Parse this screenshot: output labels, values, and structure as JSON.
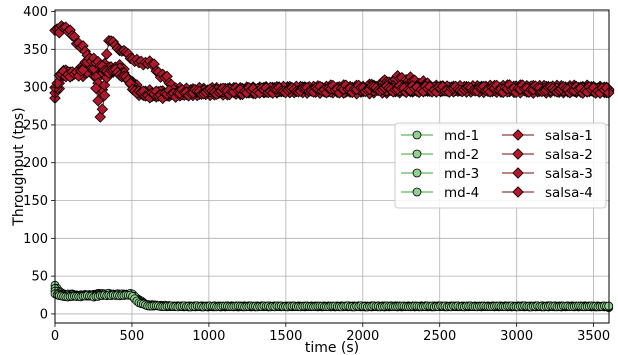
{
  "chart_data": {
    "type": "scatter",
    "title": "",
    "xlabel": "time (s)",
    "ylabel": "Throughput (tps)",
    "xlim": [
      0,
      3600
    ],
    "ylim": [
      -12,
      402
    ],
    "xticks": [
      0,
      500,
      1000,
      1500,
      2000,
      2500,
      3000,
      3500
    ],
    "yticks": [
      0,
      50,
      100,
      150,
      200,
      250,
      300,
      350,
      400
    ],
    "grid": true,
    "legend_position": "center-right",
    "legend_columns": 2,
    "colors": {
      "md_fill": "#8fd18f",
      "md_line": "#3aa53a",
      "salsa_fill": "#b2182b",
      "salsa_line": "#7a0a0a"
    },
    "series": [
      {
        "name": "md-1",
        "group": "md",
        "marker": "circle",
        "x": [
          0,
          25,
          50,
          100,
          150,
          200,
          250,
          300,
          350,
          400,
          450,
          500,
          550,
          600,
          700,
          800,
          1000,
          1500,
          2000,
          2500,
          3000,
          3500,
          3600
        ],
        "y": [
          38,
          30,
          27,
          26,
          25,
          25,
          26,
          27,
          26,
          25,
          26,
          25,
          18,
          12,
          11,
          10,
          10,
          10,
          10,
          10,
          10,
          10,
          9
        ]
      },
      {
        "name": "md-2",
        "group": "md",
        "marker": "circle",
        "x": [
          0,
          25,
          50,
          100,
          150,
          200,
          250,
          300,
          350,
          400,
          450,
          500,
          550,
          600,
          700,
          800,
          1000,
          1500,
          2000,
          2500,
          3000,
          3500,
          3600
        ],
        "y": [
          33,
          28,
          26,
          25,
          25,
          24,
          25,
          26,
          25,
          27,
          25,
          26,
          16,
          12,
          11,
          10,
          10,
          10,
          10,
          10,
          10,
          10,
          10
        ]
      },
      {
        "name": "md-3",
        "group": "md",
        "marker": "circle",
        "x": [
          0,
          25,
          50,
          100,
          150,
          200,
          250,
          300,
          350,
          400,
          450,
          500,
          550,
          600,
          700,
          800,
          1000,
          1500,
          2000,
          2500,
          3000,
          3500,
          3600
        ],
        "y": [
          30,
          26,
          24,
          24,
          24,
          25,
          24,
          25,
          27,
          26,
          26,
          27,
          15,
          12,
          10,
          10,
          10,
          10,
          10,
          10,
          10,
          10,
          10
        ]
      },
      {
        "name": "md-4",
        "group": "md",
        "marker": "circle",
        "x": [
          0,
          25,
          50,
          100,
          150,
          200,
          250,
          300,
          350,
          400,
          450,
          500,
          550,
          600,
          700,
          800,
          1000,
          1500,
          2000,
          2500,
          3000,
          3500,
          3600
        ],
        "y": [
          27,
          24,
          23,
          23,
          23,
          24,
          23,
          24,
          25,
          24,
          25,
          24,
          14,
          11,
          10,
          10,
          10,
          10,
          10,
          10,
          10,
          10,
          10
        ]
      },
      {
        "name": "salsa-1",
        "group": "salsa",
        "marker": "diamond",
        "x": [
          0,
          25,
          50,
          75,
          100,
          150,
          200,
          250,
          300,
          350,
          400,
          450,
          500,
          550,
          600,
          700,
          800,
          1000,
          1500,
          2000,
          2250,
          2500,
          3000,
          3500,
          3600
        ],
        "y": [
          375,
          370,
          385,
          378,
          370,
          360,
          345,
          318,
          312,
          360,
          355,
          345,
          340,
          330,
          335,
          315,
          295,
          293,
          298,
          298,
          312,
          298,
          298,
          298,
          296
        ]
      },
      {
        "name": "salsa-2",
        "group": "salsa",
        "marker": "diamond",
        "x": [
          0,
          25,
          50,
          75,
          100,
          150,
          200,
          250,
          300,
          350,
          400,
          450,
          500,
          550,
          600,
          700,
          800,
          1000,
          1500,
          2000,
          2500,
          3000,
          3500,
          3600
        ],
        "y": [
          285,
          300,
          320,
          315,
          318,
          320,
          330,
          320,
          295,
          315,
          330,
          320,
          305,
          295,
          292,
          291,
          292,
          294,
          296,
          297,
          297,
          298,
          297,
          295
        ]
      },
      {
        "name": "salsa-3",
        "group": "salsa",
        "marker": "diamond",
        "x": [
          0,
          25,
          50,
          75,
          100,
          150,
          200,
          250,
          300,
          350,
          400,
          450,
          500,
          550,
          600,
          700,
          800,
          1000,
          1500,
          2000,
          2500,
          3000,
          3500,
          3600
        ],
        "y": [
          295,
          305,
          318,
          322,
          320,
          315,
          320,
          325,
          255,
          330,
          322,
          320,
          300,
          292,
          290,
          292,
          293,
          295,
          297,
          296,
          298,
          297,
          297,
          296
        ]
      },
      {
        "name": "salsa-4",
        "group": "salsa",
        "marker": "diamond",
        "x": [
          0,
          25,
          50,
          75,
          100,
          150,
          200,
          250,
          300,
          350,
          400,
          450,
          500,
          550,
          600,
          700,
          800,
          1000,
          1500,
          2000,
          2500,
          3000,
          3500,
          3600
        ],
        "y": [
          300,
          310,
          320,
          318,
          315,
          318,
          330,
          340,
          325,
          322,
          320,
          315,
          300,
          292,
          290,
          290,
          292,
          294,
          296,
          298,
          297,
          298,
          296,
          295
        ]
      }
    ]
  }
}
